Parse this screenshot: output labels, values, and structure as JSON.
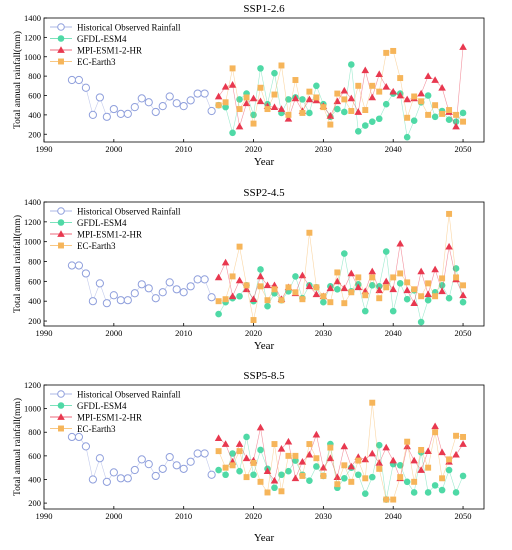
{
  "chart_data": [
    {
      "type": "line",
      "title": "SSP1-2.6",
      "xlabel": "Year",
      "ylabel": "Total annual rainfall(mm)",
      "xlim": [
        1990,
        2053
      ],
      "ylim": [
        120,
        1400
      ],
      "xticks": [
        1990,
        2000,
        2010,
        2020,
        2030,
        2040,
        2050
      ],
      "yticks": [
        200,
        400,
        600,
        800,
        1000,
        1200,
        1400
      ],
      "legend": "top-left",
      "series": [
        {
          "name": "Historical Observed Rainfall",
          "color": "#8f9fdc",
          "marker": "circle-open",
          "x": [
            1994,
            1995,
            1996,
            1997,
            1998,
            1999,
            2000,
            2001,
            2002,
            2003,
            2004,
            2005,
            2006,
            2007,
            2008,
            2009,
            2010,
            2011,
            2012,
            2013,
            2014
          ],
          "y": [
            760,
            760,
            680,
            400,
            580,
            380,
            460,
            410,
            410,
            480,
            570,
            530,
            430,
            490,
            590,
            520,
            490,
            550,
            620,
            620,
            440
          ]
        },
        {
          "name": "GFDL-ESM4",
          "color": "#4fd9a6",
          "marker": "circle",
          "x": [
            2015,
            2016,
            2017,
            2018,
            2019,
            2020,
            2021,
            2022,
            2023,
            2024,
            2025,
            2026,
            2027,
            2028,
            2029,
            2030,
            2031,
            2032,
            2033,
            2034,
            2035,
            2036,
            2037,
            2038,
            2039,
            2040,
            2041,
            2042,
            2043,
            2044,
            2045,
            2046,
            2047,
            2048,
            2049,
            2050
          ],
          "y": [
            500,
            480,
            215,
            560,
            620,
            400,
            880,
            510,
            830,
            420,
            560,
            580,
            560,
            420,
            700,
            510,
            380,
            460,
            430,
            920,
            230,
            290,
            330,
            360,
            510,
            620,
            620,
            170,
            340,
            530,
            600,
            380,
            440,
            350,
            330,
            420
          ]
        },
        {
          "name": "MPI-ESM1-2-HR",
          "color": "#e8384f",
          "marker": "triangle",
          "x": [
            2015,
            2016,
            2017,
            2018,
            2019,
            2020,
            2021,
            2022,
            2023,
            2024,
            2025,
            2026,
            2027,
            2028,
            2029,
            2030,
            2031,
            2032,
            2033,
            2034,
            2035,
            2036,
            2037,
            2038,
            2039,
            2040,
            2041,
            2042,
            2043,
            2044,
            2045,
            2046,
            2047,
            2048,
            2049,
            2050
          ],
          "y": [
            590,
            690,
            710,
            280,
            520,
            570,
            540,
            490,
            480,
            460,
            360,
            570,
            440,
            560,
            550,
            490,
            390,
            540,
            650,
            570,
            430,
            860,
            580,
            820,
            690,
            640,
            600,
            560,
            570,
            620,
            800,
            760,
            680,
            430,
            280,
            1100
          ]
        },
        {
          "name": "EC-Earth3",
          "color": "#f6b55a",
          "marker": "square",
          "x": [
            2015,
            2016,
            2017,
            2018,
            2019,
            2020,
            2021,
            2022,
            2023,
            2024,
            2025,
            2026,
            2027,
            2028,
            2029,
            2030,
            2031,
            2032,
            2033,
            2034,
            2035,
            2036,
            2037,
            2038,
            2039,
            2040,
            2041,
            2042,
            2043,
            2044,
            2045,
            2046,
            2047,
            2048,
            2049,
            2050
          ],
          "y": [
            500,
            530,
            880,
            460,
            580,
            310,
            680,
            460,
            610,
            910,
            400,
            760,
            420,
            640,
            580,
            480,
            300,
            620,
            560,
            440,
            700,
            450,
            700,
            640,
            1040,
            1060,
            780,
            370,
            590,
            540,
            400,
            500,
            410,
            450,
            400,
            330
          ]
        }
      ]
    },
    {
      "type": "line",
      "title": "SSP2-4.5",
      "xlabel": "Year",
      "ylabel": "Total annual rainfall(mm)",
      "xlim": [
        1990,
        2053
      ],
      "ylim": [
        150,
        1400
      ],
      "xticks": [
        1990,
        2000,
        2010,
        2020,
        2030,
        2040,
        2050
      ],
      "yticks": [
        200,
        400,
        600,
        800,
        1000,
        1200,
        1400
      ],
      "legend": "top-left",
      "series": [
        {
          "name": "Historical Observed Rainfall",
          "color": "#8f9fdc",
          "marker": "circle-open",
          "x": [
            1994,
            1995,
            1996,
            1997,
            1998,
            1999,
            2000,
            2001,
            2002,
            2003,
            2004,
            2005,
            2006,
            2007,
            2008,
            2009,
            2010,
            2011,
            2012,
            2013,
            2014
          ],
          "y": [
            760,
            760,
            680,
            400,
            580,
            380,
            460,
            410,
            410,
            480,
            570,
            530,
            430,
            490,
            590,
            520,
            490,
            550,
            620,
            620,
            440
          ]
        },
        {
          "name": "GFDL-ESM4",
          "color": "#4fd9a6",
          "marker": "circle",
          "x": [
            2015,
            2016,
            2017,
            2018,
            2019,
            2020,
            2021,
            2022,
            2023,
            2024,
            2025,
            2026,
            2027,
            2028,
            2029,
            2030,
            2031,
            2032,
            2033,
            2034,
            2035,
            2036,
            2037,
            2038,
            2039,
            2040,
            2041,
            2042,
            2043,
            2044,
            2045,
            2046,
            2047,
            2048,
            2049,
            2050
          ],
          "y": [
            270,
            390,
            430,
            450,
            560,
            400,
            720,
            350,
            480,
            410,
            500,
            650,
            430,
            560,
            540,
            390,
            550,
            520,
            880,
            500,
            570,
            300,
            560,
            550,
            900,
            300,
            580,
            420,
            510,
            190,
            410,
            490,
            560,
            430,
            730,
            390
          ]
        },
        {
          "name": "MPI-ESM1-2-HR",
          "color": "#e8384f",
          "marker": "triangle",
          "x": [
            2015,
            2016,
            2017,
            2018,
            2019,
            2020,
            2021,
            2022,
            2023,
            2024,
            2025,
            2026,
            2027,
            2028,
            2029,
            2030,
            2031,
            2032,
            2033,
            2034,
            2035,
            2036,
            2037,
            2038,
            2039,
            2040,
            2041,
            2042,
            2043,
            2044,
            2045,
            2046,
            2047,
            2048,
            2049,
            2050
          ],
          "y": [
            640,
            790,
            450,
            610,
            520,
            420,
            650,
            560,
            560,
            420,
            540,
            480,
            660,
            550,
            470,
            450,
            530,
            600,
            530,
            680,
            540,
            500,
            700,
            510,
            600,
            520,
            980,
            510,
            380,
            700,
            470,
            720,
            500,
            950,
            620,
            460
          ]
        },
        {
          "name": "EC-Earth3",
          "color": "#f6b55a",
          "marker": "square",
          "x": [
            2015,
            2016,
            2017,
            2018,
            2019,
            2020,
            2021,
            2022,
            2023,
            2024,
            2025,
            2026,
            2027,
            2028,
            2029,
            2030,
            2031,
            2032,
            2033,
            2034,
            2035,
            2036,
            2037,
            2038,
            2039,
            2040,
            2041,
            2042,
            2043,
            2044,
            2045,
            2046,
            2047,
            2048,
            2049,
            2050
          ],
          "y": [
            400,
            420,
            650,
            950,
            560,
            210,
            550,
            410,
            520,
            410,
            540,
            490,
            420,
            1090,
            540,
            450,
            390,
            690,
            380,
            490,
            640,
            460,
            640,
            430,
            540,
            640,
            680,
            590,
            520,
            450,
            580,
            450,
            630,
            1280,
            640,
            560
          ]
        }
      ]
    },
    {
      "type": "line",
      "title": "SSP5-8.5",
      "xlabel": "Year",
      "ylabel": "Total annual rainfall(mm)",
      "xlim": [
        1990,
        2053
      ],
      "ylim": [
        150,
        1200
      ],
      "xticks": [
        1990,
        2000,
        2010,
        2020,
        2030,
        2040,
        2050
      ],
      "yticks": [
        200,
        400,
        600,
        800,
        1000,
        1200
      ],
      "legend": "top-left",
      "series": [
        {
          "name": "Historical Observed Rainfall",
          "color": "#8f9fdc",
          "marker": "circle-open",
          "x": [
            1994,
            1995,
            1996,
            1997,
            1998,
            1999,
            2000,
            2001,
            2002,
            2003,
            2004,
            2005,
            2006,
            2007,
            2008,
            2009,
            2010,
            2011,
            2012,
            2013,
            2014
          ],
          "y": [
            760,
            760,
            680,
            400,
            580,
            380,
            460,
            410,
            410,
            480,
            570,
            530,
            430,
            490,
            590,
            520,
            490,
            550,
            620,
            620,
            440
          ]
        },
        {
          "name": "GFDL-ESM4",
          "color": "#4fd9a6",
          "marker": "circle",
          "x": [
            2015,
            2016,
            2017,
            2018,
            2019,
            2020,
            2021,
            2022,
            2023,
            2024,
            2025,
            2026,
            2027,
            2028,
            2029,
            2030,
            2031,
            2032,
            2033,
            2034,
            2035,
            2036,
            2037,
            2038,
            2039,
            2040,
            2041,
            2042,
            2043,
            2044,
            2045,
            2046,
            2047,
            2048,
            2049,
            2050
          ],
          "y": [
            480,
            440,
            620,
            470,
            760,
            440,
            650,
            490,
            330,
            440,
            470,
            560,
            440,
            390,
            510,
            430,
            700,
            330,
            410,
            500,
            440,
            280,
            420,
            690,
            230,
            530,
            520,
            380,
            290,
            630,
            290,
            350,
            310,
            480,
            290,
            430
          ]
        },
        {
          "name": "MPI-ESM1-2-HR",
          "color": "#e8384f",
          "marker": "triangle",
          "x": [
            2015,
            2016,
            2017,
            2018,
            2019,
            2020,
            2021,
            2022,
            2023,
            2024,
            2025,
            2026,
            2027,
            2028,
            2029,
            2030,
            2031,
            2032,
            2033,
            2034,
            2035,
            2036,
            2037,
            2038,
            2039,
            2040,
            2041,
            2042,
            2043,
            2044,
            2045,
            2046,
            2047,
            2048,
            2049,
            2050
          ],
          "y": [
            750,
            700,
            550,
            700,
            580,
            560,
            840,
            470,
            390,
            660,
            720,
            410,
            550,
            610,
            780,
            500,
            580,
            420,
            680,
            510,
            590,
            570,
            620,
            540,
            670,
            560,
            410,
            680,
            560,
            480,
            640,
            850,
            630,
            550,
            610,
            700
          ]
        },
        {
          "name": "EC-Earth3",
          "color": "#f6b55a",
          "marker": "square",
          "x": [
            2015,
            2016,
            2017,
            2018,
            2019,
            2020,
            2021,
            2022,
            2023,
            2024,
            2025,
            2026,
            2027,
            2028,
            2029,
            2030,
            2031,
            2032,
            2033,
            2034,
            2035,
            2036,
            2037,
            2038,
            2039,
            2040,
            2041,
            2042,
            2043,
            2044,
            2045,
            2046,
            2047,
            2048,
            2049,
            2050
          ],
          "y": [
            640,
            500,
            520,
            640,
            420,
            540,
            380,
            290,
            700,
            300,
            600,
            600,
            430,
            700,
            580,
            430,
            670,
            360,
            520,
            380,
            560,
            410,
            1050,
            490,
            230,
            230,
            420,
            720,
            380,
            650,
            500,
            800,
            410,
            570,
            770,
            760
          ]
        }
      ]
    }
  ]
}
